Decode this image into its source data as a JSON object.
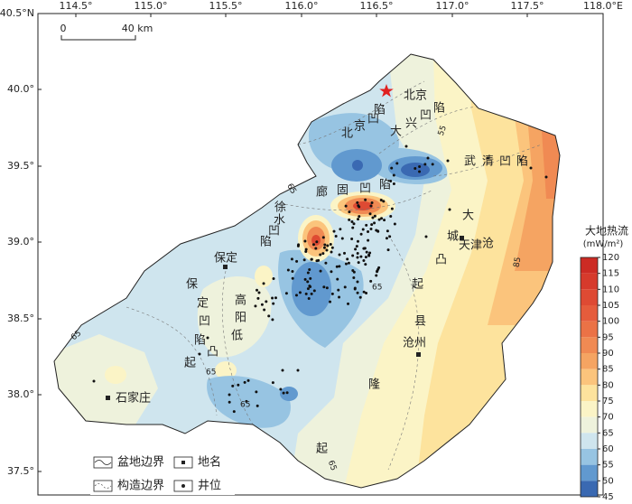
{
  "map": {
    "lon_ticks": [
      "114.5°",
      "115.0°",
      "115.5°",
      "116.0°",
      "116.5°",
      "117.0°",
      "117.5°",
      "118.0°E"
    ],
    "lat_ticks": [
      "40.5°N",
      "40.0°",
      "39.5°",
      "39.0°",
      "38.5°",
      "38.0°",
      "37.5°"
    ],
    "scale_bar": {
      "start": "0",
      "end": "40 km"
    },
    "cities": [
      "北京",
      "保定",
      "天津",
      "沧州",
      "石家庄"
    ],
    "structures": [
      "北京凹陷",
      "大兴凹陷",
      "武清凹陷",
      "廊固凹陷",
      "徐水凹陷",
      "保定凹陷",
      "高阳低凸起",
      "大城凸起",
      "沧县隆起"
    ],
    "contour_labels": [
      65,
      65,
      65,
      65,
      65,
      65,
      85,
      55
    ],
    "colorbar": {
      "title": "大地热流",
      "unit": "(mW/m²)",
      "ticks": [
        120,
        115,
        110,
        105,
        100,
        95,
        90,
        85,
        80,
        75,
        70,
        65,
        60,
        55,
        50,
        45
      ],
      "colors": [
        "#cc2b24",
        "#d63a2c",
        "#de4a33",
        "#e55c3c",
        "#eb7246",
        "#f08a53",
        "#f5a462",
        "#fbc47c",
        "#fde39d",
        "#fbf4c6",
        "#eef2dc",
        "#cfe5ee",
        "#97c4e2",
        "#6199cf",
        "#3a69b2"
      ]
    },
    "legend": [
      "盆地边界",
      "地名",
      "构造边界",
      "井位"
    ]
  }
}
